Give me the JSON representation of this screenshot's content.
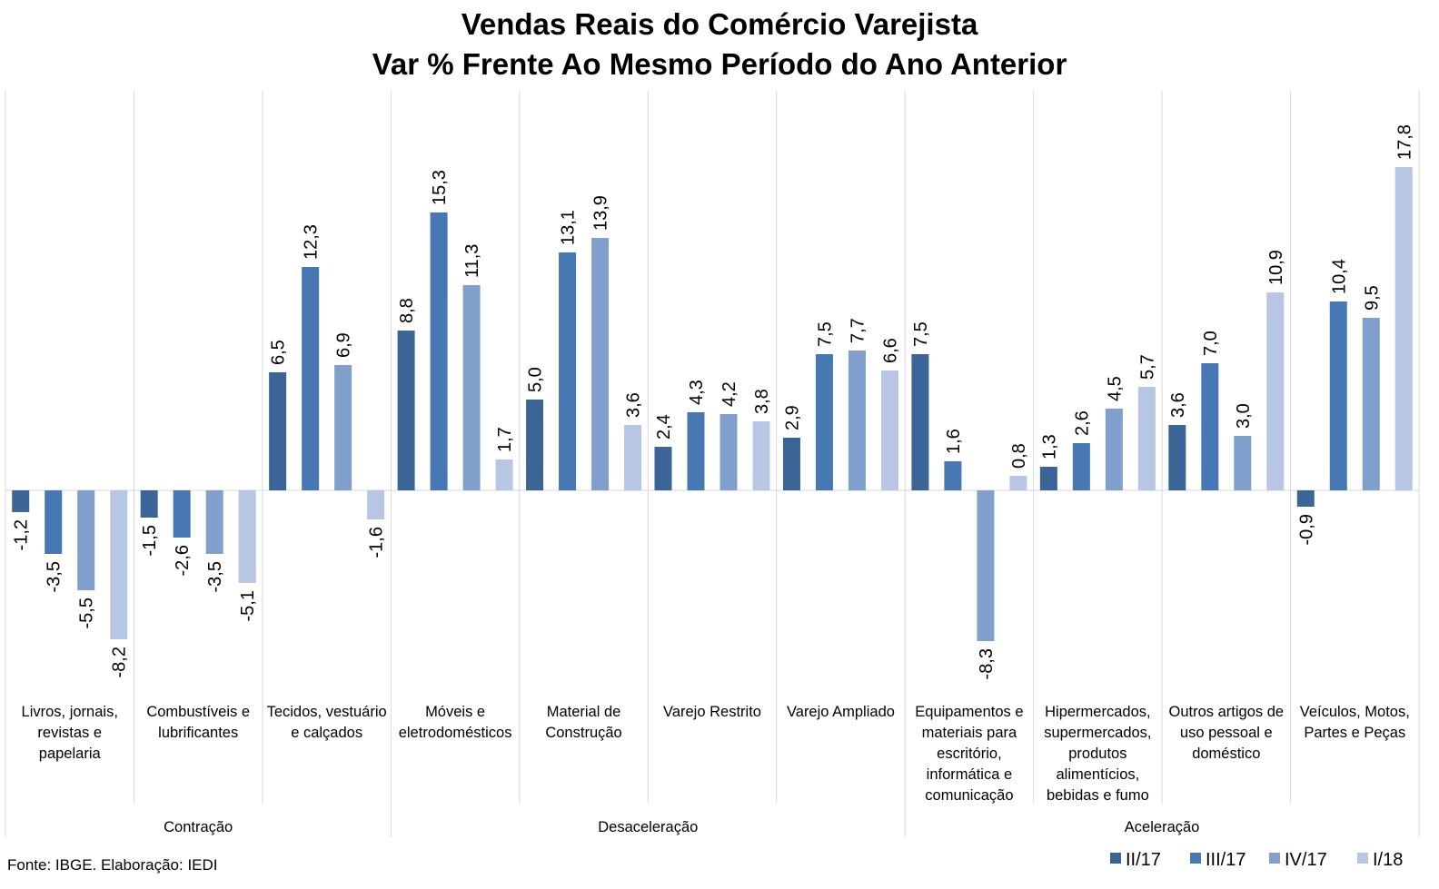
{
  "chart_data": {
    "type": "bar",
    "title": [
      "Vendas Reais do Comércio Varejista",
      "Var % Frente Ao Mesmo Período do Ano Anterior"
    ],
    "source": "Fonte: IBGE. Elaboração: IEDI",
    "legend_position": "bottom-right",
    "grid": false,
    "ylim": [
      -10,
      20
    ],
    "colors": [
      "#3a6596",
      "#4878b4",
      "#809fcd",
      "#b7c6e2"
    ],
    "categories": [
      [
        "Livros, jornais,",
        "revistas e",
        "papelaria"
      ],
      [
        "Combustíveis e",
        "lubrificantes"
      ],
      [
        "Tecidos, vestuário",
        "e calçados"
      ],
      [
        "Móveis e",
        "eletrodomésticos"
      ],
      [
        "Material de",
        "Construção"
      ],
      [
        "Varejo Restrito"
      ],
      [
        "Varejo Ampliado"
      ],
      [
        "Equipamentos e",
        "materiais para",
        "escritório,",
        "informática e",
        "comunicação"
      ],
      [
        "Hipermercados,",
        "supermercados,",
        "produtos",
        "alimentícios,",
        "bebidas e fumo"
      ],
      [
        "Outros artigos de",
        "uso pessoal e",
        "doméstico"
      ],
      [
        "Veículos, Motos,",
        "Partes e Peças"
      ]
    ],
    "groups": [
      {
        "label": "Contração",
        "start": 0,
        "end": 2
      },
      {
        "label": "Desaceleração",
        "start": 3,
        "end": 6
      },
      {
        "label": "Aceleração",
        "start": 7,
        "end": 10
      }
    ],
    "series": [
      {
        "name": "II/17",
        "values": [
          -1.2,
          -1.5,
          6.5,
          8.8,
          5.0,
          2.4,
          2.9,
          7.5,
          1.3,
          3.6,
          -0.9
        ]
      },
      {
        "name": "III/17",
        "values": [
          -3.5,
          -2.6,
          12.3,
          15.3,
          13.1,
          4.3,
          7.5,
          1.6,
          2.6,
          7.0,
          10.4
        ]
      },
      {
        "name": "IV/17",
        "values": [
          -5.5,
          -3.5,
          6.9,
          11.3,
          13.9,
          4.2,
          7.7,
          -8.3,
          4.5,
          3.0,
          9.5
        ]
      },
      {
        "name": "I/18",
        "values": [
          -8.2,
          -5.1,
          -1.6,
          1.7,
          3.6,
          3.8,
          6.6,
          0.8,
          5.7,
          10.9,
          17.8
        ]
      }
    ]
  }
}
